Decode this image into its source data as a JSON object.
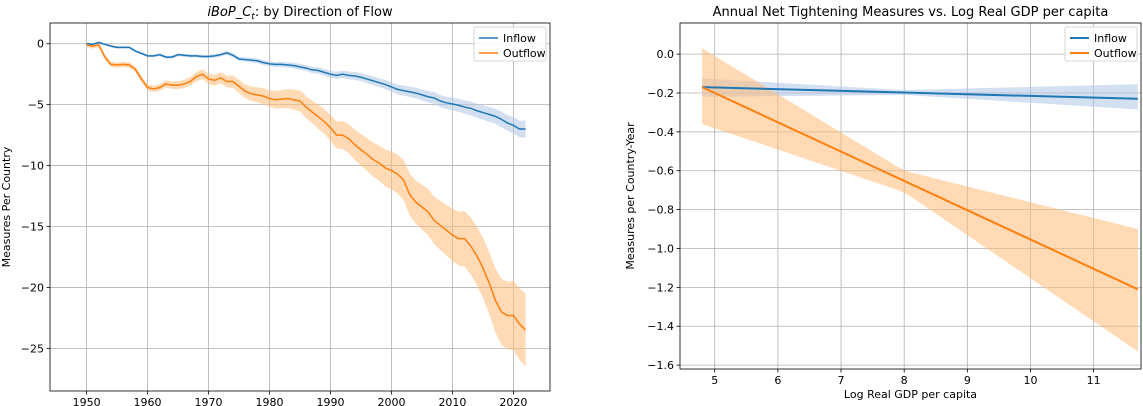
{
  "chart_data": [
    {
      "type": "line",
      "title": "iBoP_C_t: by Direction of Flow",
      "title_parts": {
        "italic": "iBoP_C",
        "sub": "t",
        "rest": ": by Direction of Flow"
      },
      "xlabel": "",
      "ylabel": "Measures Per Country",
      "xlim": [
        1944,
        2026
      ],
      "ylim": [
        -28.5,
        1.7
      ],
      "xticks": [
        1950,
        1960,
        1970,
        1980,
        1990,
        2000,
        2010,
        2020
      ],
      "yticks": [
        0,
        -5,
        -10,
        -15,
        -20,
        -25
      ],
      "grid": true,
      "legend_position": "top-right",
      "series": [
        {
          "name": "Inflow",
          "color": "#1f77b4",
          "band_color": "#aec7e8",
          "x": [
            1950,
            1951,
            1952,
            1953,
            1954,
            1955,
            1956,
            1957,
            1958,
            1959,
            1960,
            1961,
            1962,
            1963,
            1964,
            1965,
            1966,
            1967,
            1968,
            1969,
            1970,
            1971,
            1972,
            1973,
            1974,
            1975,
            1976,
            1977,
            1978,
            1979,
            1980,
            1981,
            1982,
            1983,
            1984,
            1985,
            1986,
            1987,
            1988,
            1989,
            1990,
            1991,
            1992,
            1993,
            1994,
            1995,
            1996,
            1997,
            1998,
            1999,
            2000,
            2001,
            2002,
            2003,
            2004,
            2005,
            2006,
            2007,
            2008,
            2009,
            2010,
            2011,
            2012,
            2013,
            2014,
            2015,
            2016,
            2017,
            2018,
            2019,
            2020,
            2021,
            2022
          ],
          "values": [
            0,
            -0.05,
            0.1,
            -0.05,
            -0.2,
            -0.3,
            -0.3,
            -0.3,
            -0.6,
            -0.8,
            -1.0,
            -1.0,
            -0.9,
            -1.1,
            -1.1,
            -0.9,
            -0.95,
            -1.0,
            -1.0,
            -1.05,
            -1.05,
            -1.0,
            -0.9,
            -0.75,
            -0.95,
            -1.25,
            -1.3,
            -1.35,
            -1.4,
            -1.55,
            -1.65,
            -1.7,
            -1.7,
            -1.75,
            -1.8,
            -1.9,
            -2.0,
            -2.15,
            -2.2,
            -2.35,
            -2.5,
            -2.6,
            -2.5,
            -2.6,
            -2.65,
            -2.75,
            -2.9,
            -3.05,
            -3.2,
            -3.35,
            -3.55,
            -3.75,
            -3.85,
            -3.95,
            -4.05,
            -4.2,
            -4.35,
            -4.45,
            -4.7,
            -4.85,
            -4.95,
            -5.05,
            -5.2,
            -5.3,
            -5.5,
            -5.65,
            -5.8,
            -5.95,
            -6.2,
            -6.5,
            -6.7,
            -7.0,
            -7.0
          ],
          "band_half_width_start": 0.1,
          "band_half_width_end": 0.7
        },
        {
          "name": "Outflow",
          "color": "#ff7f0e",
          "band_color": "#ffbb78",
          "x": [
            1950,
            1951,
            1952,
            1953,
            1954,
            1955,
            1956,
            1957,
            1958,
            1959,
            1960,
            1961,
            1962,
            1963,
            1964,
            1965,
            1966,
            1967,
            1968,
            1969,
            1970,
            1971,
            1972,
            1973,
            1974,
            1975,
            1976,
            1977,
            1978,
            1979,
            1980,
            1981,
            1982,
            1983,
            1984,
            1985,
            1986,
            1987,
            1988,
            1989,
            1990,
            1991,
            1992,
            1993,
            1994,
            1995,
            1996,
            1997,
            1998,
            1999,
            2000,
            2001,
            2002,
            2003,
            2004,
            2005,
            2006,
            2007,
            2008,
            2009,
            2010,
            2011,
            2012,
            2013,
            2014,
            2015,
            2016,
            2017,
            2018,
            2019,
            2020,
            2021,
            2022
          ],
          "values": [
            -0.1,
            -0.2,
            -0.1,
            -1.1,
            -1.7,
            -1.75,
            -1.7,
            -1.75,
            -2.1,
            -2.9,
            -3.6,
            -3.7,
            -3.6,
            -3.3,
            -3.4,
            -3.4,
            -3.3,
            -3.1,
            -2.7,
            -2.5,
            -2.9,
            -3.0,
            -2.8,
            -3.1,
            -3.1,
            -3.5,
            -3.9,
            -4.1,
            -4.2,
            -4.3,
            -4.5,
            -4.6,
            -4.55,
            -4.5,
            -4.6,
            -4.7,
            -5.2,
            -5.6,
            -6.0,
            -6.4,
            -6.9,
            -7.5,
            -7.5,
            -7.8,
            -8.3,
            -8.7,
            -9.1,
            -9.5,
            -9.8,
            -10.2,
            -10.4,
            -10.7,
            -11.2,
            -12.4,
            -13.0,
            -13.4,
            -13.8,
            -14.5,
            -14.9,
            -15.3,
            -15.7,
            -16.0,
            -16.0,
            -16.6,
            -17.4,
            -18.4,
            -19.6,
            -21.0,
            -22.0,
            -22.3,
            -22.3,
            -23.0,
            -23.5
          ],
          "band_half_width_start": 0.2,
          "band_half_width_end": 3.0
        }
      ]
    },
    {
      "type": "line",
      "title": "Annual Net Tightening Measures vs. Log Real GDP per capita",
      "xlabel": "Log Real GDP per capita",
      "ylabel": "Measures per Country-Year",
      "xlim": [
        4.45,
        11.75
      ],
      "ylim": [
        -1.62,
        0.16
      ],
      "xticks": [
        5,
        6,
        7,
        8,
        9,
        10,
        11
      ],
      "yticks": [
        0.0,
        -0.2,
        -0.4,
        -0.6,
        -0.8,
        -1.0,
        -1.2,
        -1.4,
        -1.6
      ],
      "ytick_labels": [
        "0.0",
        "−0.2",
        "−0.4",
        "−0.6",
        "−0.8",
        "−1.0",
        "−1.2",
        "−1.4",
        "−1.6"
      ],
      "grid": true,
      "legend_position": "top-right",
      "series": [
        {
          "name": "Inflow",
          "color": "#1f77b4",
          "band_color": "#aec7e8",
          "x": [
            4.8,
            11.7
          ],
          "values": [
            -0.17,
            -0.23
          ],
          "band_lower": [
            -0.22,
            -0.285
          ],
          "band_upper": [
            -0.125,
            -0.155
          ],
          "band_mid_x": 8.0,
          "band_mid_lower": -0.21,
          "band_mid_upper": -0.185
        },
        {
          "name": "Outflow",
          "color": "#ff7f0e",
          "band_color": "#ffbb78",
          "x": [
            4.8,
            11.7
          ],
          "values": [
            -0.17,
            -1.21
          ],
          "band_lower": [
            -0.36,
            -1.53
          ],
          "band_upper": [
            0.03,
            -0.9
          ],
          "band_mid_x": 8.0,
          "band_mid_lower": -0.71,
          "band_mid_upper": -0.6
        }
      ]
    }
  ]
}
